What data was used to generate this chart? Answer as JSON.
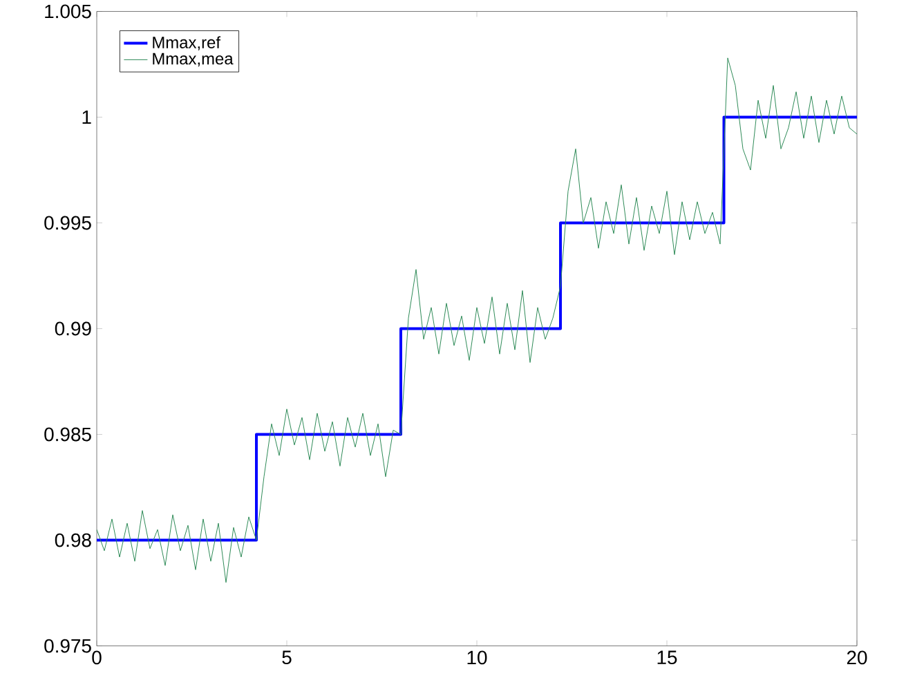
{
  "chart_data": {
    "type": "line",
    "xlim": [
      0,
      20
    ],
    "ylim": [
      0.975,
      1.005
    ],
    "xticks": [
      0,
      5,
      10,
      15,
      20
    ],
    "yticks": [
      0.975,
      0.98,
      0.985,
      0.99,
      0.995,
      1,
      1.005
    ],
    "legend": "top left",
    "marker": "none",
    "line_style": "solid",
    "series": [
      {
        "name": "Mmax,ref",
        "type": "step",
        "color": "#0000ff",
        "x": [
          0,
          4.2,
          8.0,
          12.2,
          16.5,
          20
        ],
        "values": [
          0.98,
          0.985,
          0.99,
          0.995,
          1.0,
          1.0
        ]
      },
      {
        "name": "Mmax,mea",
        "color": "#2e8b57",
        "x": [
          0,
          0.2,
          0.4,
          0.6,
          0.8,
          1.0,
          1.2,
          1.4,
          1.6,
          1.8,
          2.0,
          2.2,
          2.4,
          2.6,
          2.8,
          3.0,
          3.2,
          3.4,
          3.6,
          3.8,
          4.0,
          4.2,
          4.4,
          4.6,
          4.8,
          5.0,
          5.2,
          5.4,
          5.6,
          5.8,
          6.0,
          6.2,
          6.4,
          6.6,
          6.8,
          7.0,
          7.2,
          7.4,
          7.6,
          7.8,
          8.0,
          8.2,
          8.4,
          8.6,
          8.8,
          9.0,
          9.2,
          9.4,
          9.6,
          9.8,
          10.0,
          10.2,
          10.4,
          10.6,
          10.8,
          11.0,
          11.2,
          11.4,
          11.6,
          11.8,
          12.0,
          12.2,
          12.4,
          12.6,
          12.8,
          13.0,
          13.2,
          13.4,
          13.6,
          13.8,
          14.0,
          14.2,
          14.4,
          14.6,
          14.8,
          15.0,
          15.2,
          15.4,
          15.6,
          15.8,
          16.0,
          16.2,
          16.4,
          16.6,
          16.8,
          17.0,
          17.2,
          17.4,
          17.6,
          17.8,
          18.0,
          18.2,
          18.4,
          18.6,
          18.8,
          19.0,
          19.2,
          19.4,
          19.6,
          19.8,
          20.0
        ],
        "values": [
          0.9805,
          0.9795,
          0.981,
          0.9792,
          0.9808,
          0.979,
          0.9814,
          0.9796,
          0.9805,
          0.9788,
          0.9812,
          0.9795,
          0.9807,
          0.9786,
          0.981,
          0.979,
          0.9808,
          0.978,
          0.9806,
          0.9792,
          0.9811,
          0.98,
          0.983,
          0.9855,
          0.984,
          0.9862,
          0.9845,
          0.9858,
          0.9838,
          0.986,
          0.9842,
          0.9856,
          0.9835,
          0.9858,
          0.9844,
          0.986,
          0.984,
          0.9855,
          0.983,
          0.9852,
          0.985,
          0.9905,
          0.9928,
          0.9895,
          0.991,
          0.9888,
          0.9912,
          0.9892,
          0.9906,
          0.9885,
          0.991,
          0.9893,
          0.9915,
          0.9888,
          0.9912,
          0.989,
          0.9918,
          0.9884,
          0.991,
          0.9895,
          0.9905,
          0.992,
          0.9965,
          0.9985,
          0.995,
          0.9962,
          0.9938,
          0.996,
          0.9945,
          0.9968,
          0.994,
          0.9962,
          0.9937,
          0.9958,
          0.9945,
          0.9965,
          0.9935,
          0.996,
          0.9942,
          0.996,
          0.9945,
          0.9955,
          0.994,
          1.0028,
          1.0015,
          0.9985,
          0.9975,
          1.0008,
          0.999,
          1.0015,
          0.9985,
          0.9995,
          1.0012,
          0.999,
          1.001,
          0.9988,
          1.0008,
          0.9992,
          1.001,
          0.9995,
          0.9992
        ]
      }
    ]
  }
}
